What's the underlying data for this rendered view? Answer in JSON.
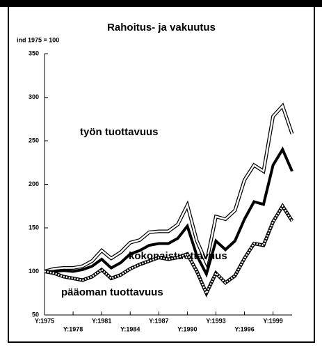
{
  "chart_data": {
    "type": "line",
    "title": "Rahoitus- ja vakuutus",
    "subtitle": "ind 1975 = 100",
    "x": [
      1975,
      1976,
      1977,
      1978,
      1979,
      1980,
      1981,
      1982,
      1983,
      1984,
      1985,
      1986,
      1987,
      1988,
      1989,
      1990,
      1991,
      1992,
      1993,
      1994,
      1995,
      1996,
      1997,
      1998,
      1999,
      2000,
      2001
    ],
    "xlim": [
      1975,
      2001
    ],
    "xticks": [
      {
        "value": 1975,
        "label": "Y:1975"
      },
      {
        "value": 1978,
        "label": "Y:1978"
      },
      {
        "value": 1981,
        "label": "Y:1981"
      },
      {
        "value": 1984,
        "label": "Y:1984"
      },
      {
        "value": 1987,
        "label": "Y:1987"
      },
      {
        "value": 1990,
        "label": "Y:1990"
      },
      {
        "value": 1993,
        "label": "Y:1993"
      },
      {
        "value": 1996,
        "label": "Y:1996"
      },
      {
        "value": 1999,
        "label": "Y:1999"
      }
    ],
    "ylim": [
      50,
      350
    ],
    "yticks": [
      50,
      100,
      150,
      200,
      250,
      300,
      350
    ],
    "series": [
      {
        "name": "työn tuottavuus",
        "color": "#000000",
        "values": [
          100,
          103,
          104,
          104,
          106,
          112,
          124,
          115,
          122,
          133,
          136,
          145,
          146,
          146,
          154,
          176,
          135,
          110,
          163,
          160,
          170,
          205,
          222,
          215,
          278,
          290,
          258
        ]
      },
      {
        "name": "kokonaistuottavuus",
        "color": "#000000",
        "values": [
          100,
          100,
          101,
          100,
          102,
          106,
          114,
          104,
          110,
          120,
          124,
          130,
          132,
          132,
          138,
          152,
          118,
          97,
          135,
          125,
          135,
          160,
          180,
          177,
          222,
          240,
          215
        ]
      },
      {
        "name": "pääoman tuottavuus",
        "color": "#000000",
        "values": [
          100,
          98,
          94,
          92,
          90,
          94,
          102,
          92,
          96,
          103,
          108,
          112,
          116,
          114,
          116,
          120,
          100,
          75,
          98,
          87,
          95,
          115,
          132,
          130,
          157,
          175,
          158
        ]
      }
    ]
  }
}
